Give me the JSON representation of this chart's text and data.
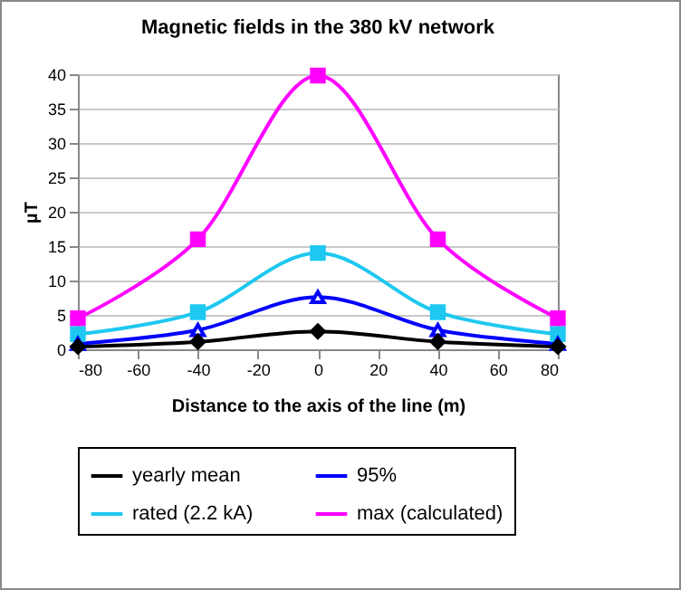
{
  "chart_data": {
    "type": "line",
    "title": "Magnetic fields in the 380 kV network",
    "xlabel": "Distance to the axis of the line (m)",
    "ylabel": "µT",
    "x": [
      -80,
      -40,
      0,
      40,
      80
    ],
    "series": [
      {
        "name": "yearly mean",
        "color": "#000000",
        "marker": "diamond",
        "values": [
          0.4,
          1.1,
          2.6,
          1.1,
          0.4
        ]
      },
      {
        "name": "95%",
        "color": "#0000ff",
        "marker": "triangle",
        "values": [
          0.8,
          2.8,
          7.6,
          2.8,
          0.8
        ]
      },
      {
        "name": "rated (2.2 kA)",
        "color": "#1ec8f0",
        "marker": "square",
        "values": [
          2.2,
          5.4,
          14,
          5.4,
          2.2
        ]
      },
      {
        "name": "max (calculated)",
        "color": "#ff00ff",
        "marker": "square",
        "values": [
          4.5,
          16,
          39.8,
          16,
          4.5
        ]
      }
    ],
    "xlim": [
      -80,
      80
    ],
    "xticks": [
      -80,
      -60,
      -40,
      -20,
      0,
      20,
      40,
      60,
      80
    ],
    "ylim": [
      0,
      40
    ],
    "yticks": [
      0,
      5,
      10,
      15,
      20,
      25,
      30,
      35,
      40
    ],
    "grid": "y",
    "legend": "bottom",
    "line_style": "solid"
  }
}
